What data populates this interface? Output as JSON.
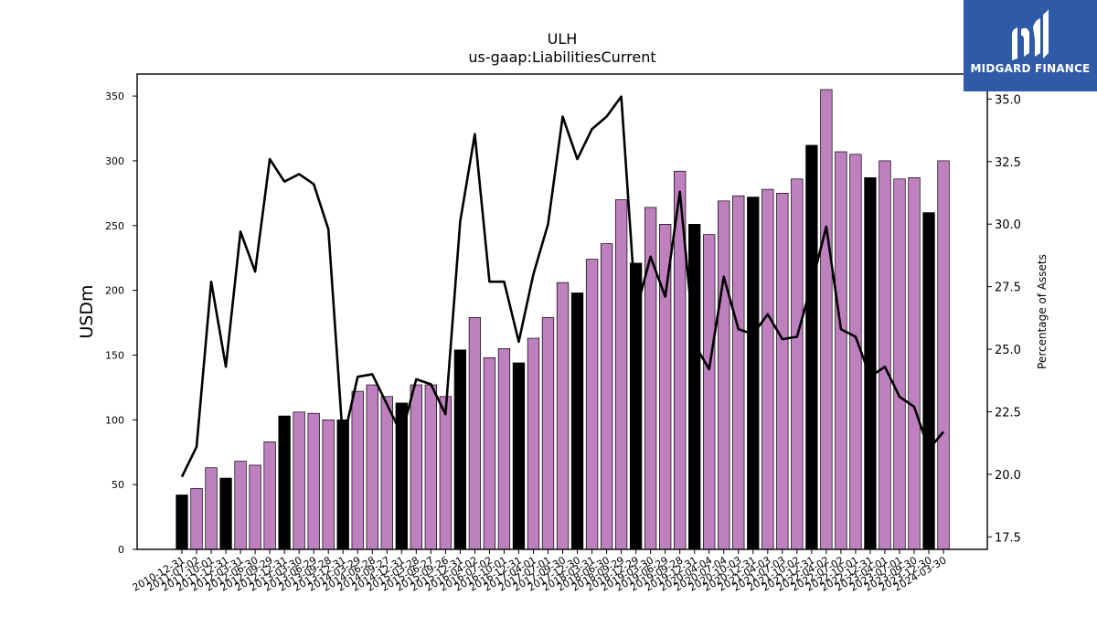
{
  "brand": {
    "name": "MIDGARD FINANCE",
    "bg_color": "#2f5aa8"
  },
  "chart_data": {
    "type": "bar",
    "title": "ULH",
    "subtitle": "us-gaap:LiabilitiesCurrent",
    "ylabel": "USDm",
    "y2label": "Percentage of Assets",
    "ylim": [
      0,
      367
    ],
    "y2lim": [
      17.0,
      36.0
    ],
    "yticks": [
      0,
      50,
      100,
      150,
      200,
      250,
      300,
      350
    ],
    "y2ticks": [
      "17.5",
      "20.0",
      "22.5",
      "25.0",
      "27.5",
      "30.0",
      "32.5",
      "35.0"
    ],
    "bar_colors": {
      "annual": "#000000",
      "quarterly": "#bf80bf"
    },
    "line_color": "#000000",
    "categories": [
      "2010-12-31",
      "2011-07-02",
      "2011-10-01",
      "2011-12-31",
      "2012-03-31",
      "2012-06-30",
      "2012-09-29",
      "2012-12-31",
      "2013-03-30",
      "2013-06-29",
      "2013-09-28",
      "2013-12-31",
      "2014-03-29",
      "2014-06-28",
      "2014-09-27",
      "2014-12-31",
      "2015-03-28",
      "2015-06-27",
      "2015-09-26",
      "2015-12-31",
      "2016-04-02",
      "2016-07-02",
      "2016-10-01",
      "2016-12-31",
      "2017-04-01",
      "2017-07-01",
      "2017-09-30",
      "2017-12-30",
      "2018-03-31",
      "2018-06-30",
      "2018-09-29",
      "2018-12-29",
      "2019-03-30",
      "2019-06-29",
      "2019-09-28",
      "2019-12-31",
      "2020-04-04",
      "2020-07-04",
      "2020-10-03",
      "2020-12-31",
      "2021-04-03",
      "2021-07-03",
      "2021-10-02",
      "2021-12-31",
      "2022-04-02",
      "2022-07-02",
      "2022-10-01",
      "2022-12-31",
      "2023-04-01",
      "2023-07-01",
      "2023-09-30",
      "2023-12-30",
      "2024-03-30"
    ],
    "tick_labels": [
      "2010-12-31",
      "2011-07-02",
      "2011-10-01",
      "2011-12-31",
      "2012-03-31",
      "2012-06-30",
      "2012-09-29",
      "2012-12-31",
      "2013-03-30",
      "2013-06-29",
      "2013-09-28",
      "2013-12-31",
      "2014-03-29",
      "2014-06-28",
      "2014-09-27",
      "2014-12-31",
      "2015-03-28",
      "2015-06-27",
      "2015-09-26",
      "2015-12-31",
      "2016-04-02",
      "2016-07-02",
      "2016-10-01",
      "2016-12-31",
      "2017-04-01",
      "2017-07-01",
      "2017-09-30",
      "2017-12-30",
      "2018-03-31",
      "2018-06-30",
      "2018-09-29",
      "2018-12-29",
      "2019-03-30",
      "2019-06-29",
      "2019-09-28",
      "2019-12-31",
      "2020-04-04",
      "2020-07-04",
      "2020-10-03",
      "2020-12-31",
      "2021-04-03",
      "2021-07-03",
      "2021-10-02",
      "2021-12-31",
      "2022-04-02",
      "2022-07-02",
      "2022-10-01",
      "2022-12-31",
      "2023-04-01",
      "2023-07-01",
      "2023-09-30",
      "2023-12-30",
      "2024-03-30"
    ],
    "series": [
      {
        "kind": "bar",
        "values": [
          42,
          47,
          63,
          55,
          68,
          65,
          83,
          103,
          106,
          105,
          100,
          100,
          122,
          127,
          118,
          113,
          127,
          127,
          118,
          154,
          179,
          148,
          155,
          144,
          163,
          179,
          206,
          198,
          224,
          236,
          270,
          221,
          264,
          251,
          292,
          251,
          243,
          269,
          273,
          272,
          278,
          275,
          286,
          312,
          355,
          307,
          305,
          287,
          300,
          286,
          287,
          260,
          300
        ],
        "annual": [
          true,
          false,
          false,
          true,
          false,
          false,
          false,
          true,
          false,
          false,
          false,
          true,
          false,
          false,
          false,
          true,
          false,
          false,
          false,
          true,
          false,
          false,
          false,
          true,
          false,
          false,
          false,
          true,
          false,
          false,
          false,
          true,
          false,
          false,
          false,
          true,
          false,
          false,
          false,
          true,
          false,
          false,
          false,
          true,
          false,
          false,
          false,
          true,
          false,
          false,
          false,
          true,
          false
        ]
      },
      {
        "kind": "line",
        "axis": "right",
        "values": [
          19.9,
          21.1,
          27.7,
          24.3,
          29.7,
          28.1,
          32.6,
          31.7,
          32.0,
          31.6,
          29.8,
          21.3,
          23.9,
          24.0,
          22.8,
          21.6,
          23.8,
          23.6,
          22.4,
          30.1,
          33.6,
          27.7,
          27.7,
          25.3,
          28.0,
          30.0,
          34.3,
          32.6,
          33.8,
          34.3,
          35.1,
          26.5,
          28.7,
          27.1,
          31.3,
          25.2,
          24.2,
          27.9,
          25.8,
          25.6,
          26.4,
          25.4,
          25.5,
          27.6,
          29.9,
          25.8,
          25.5,
          23.9,
          24.3,
          23.1,
          22.7,
          21.0,
          21.7
        ]
      }
    ]
  }
}
